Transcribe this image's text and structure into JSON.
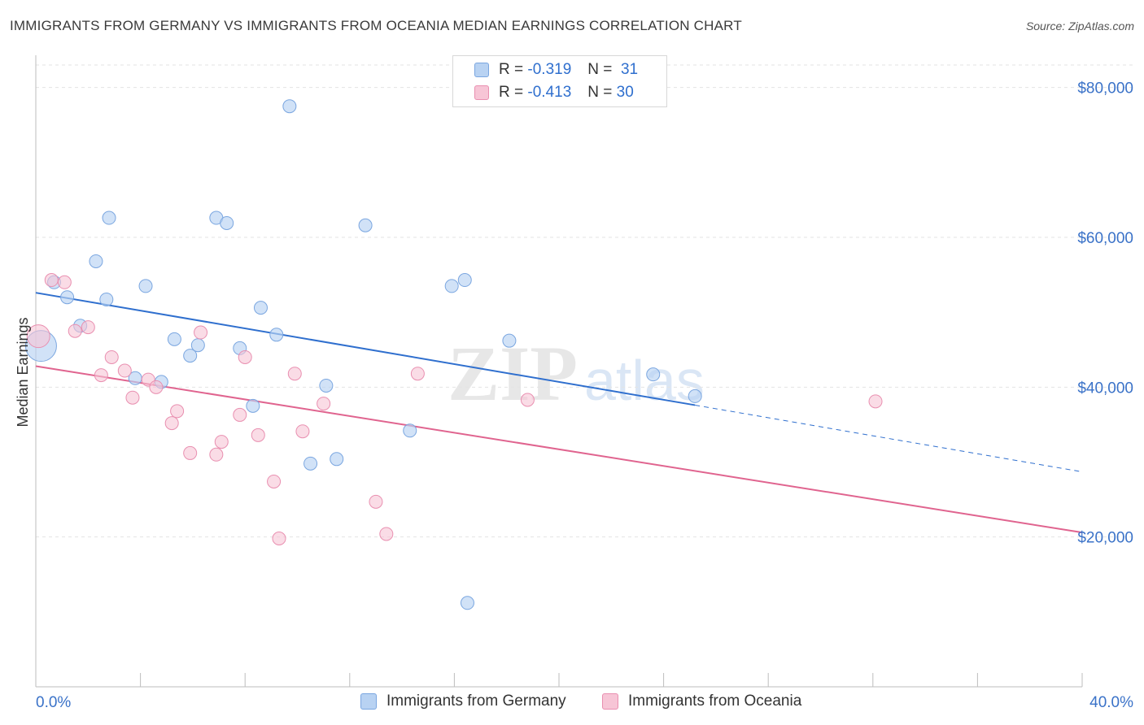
{
  "title": "IMMIGRANTS FROM GERMANY VS IMMIGRANTS FROM OCEANIA MEDIAN EARNINGS CORRELATION CHART",
  "source": "Source: ZipAtlas.com",
  "legend": {
    "r_label": "R =",
    "n_label": "N =",
    "rows": [
      {
        "r": "-0.319",
        "n": "31"
      },
      {
        "r": "-0.413",
        "n": "30"
      }
    ]
  },
  "colors": {
    "germany_fill": "#b8d2f2",
    "germany_stroke": "#7aa6e0",
    "germany_line": "#2f6fce",
    "oceania_fill": "#f7c5d6",
    "oceania_stroke": "#e98fb0",
    "oceania_line": "#e0648f",
    "tick_label": "#3a72c8",
    "grid": "#e3e3e3"
  },
  "chart_data": {
    "type": "scatter",
    "xlabel": "",
    "ylabel": "Median Earnings",
    "xlim": [
      0,
      40
    ],
    "ylim": [
      0,
      83000
    ],
    "x_tick_labels": [
      "0.0%",
      "40.0%"
    ],
    "y_ticks": [
      20000,
      40000,
      60000,
      80000
    ],
    "y_tick_labels": [
      "$20,000",
      "$40,000",
      "$60,000",
      "$80,000"
    ],
    "grid": true,
    "watermark": "ZIPatlas",
    "series": [
      {
        "name": "Immigrants from Germany",
        "points": [
          [
            0.2,
            45500
          ],
          [
            0.7,
            54000
          ],
          [
            1.2,
            52000
          ],
          [
            1.7,
            48200
          ],
          [
            2.3,
            56800
          ],
          [
            2.8,
            62600
          ],
          [
            2.7,
            51700
          ],
          [
            3.8,
            41200
          ],
          [
            4.2,
            53500
          ],
          [
            4.8,
            40700
          ],
          [
            5.3,
            46400
          ],
          [
            5.9,
            44200
          ],
          [
            6.2,
            45600
          ],
          [
            6.9,
            62600
          ],
          [
            7.3,
            61900
          ],
          [
            7.8,
            45200
          ],
          [
            8.3,
            37500
          ],
          [
            8.6,
            50600
          ],
          [
            9.2,
            47000
          ],
          [
            9.7,
            77500
          ],
          [
            10.5,
            29800
          ],
          [
            11.1,
            40200
          ],
          [
            11.5,
            30400
          ],
          [
            12.6,
            61600
          ],
          [
            14.3,
            34200
          ],
          [
            15.9,
            53500
          ],
          [
            16.4,
            54300
          ],
          [
            16.5,
            11200
          ],
          [
            18.1,
            46200
          ],
          [
            23.6,
            41700
          ],
          [
            25.2,
            38800
          ]
        ],
        "trend": {
          "x": [
            0,
            25.2
          ],
          "y": [
            52600,
            37600
          ]
        },
        "trend_extension": {
          "x": [
            25.2,
            40
          ],
          "y": [
            37600,
            28700
          ]
        }
      },
      {
        "name": "Immigrants from Oceania",
        "points": [
          [
            0.1,
            46800
          ],
          [
            0.6,
            54300
          ],
          [
            1.1,
            54000
          ],
          [
            1.5,
            47500
          ],
          [
            2.0,
            48000
          ],
          [
            2.5,
            41600
          ],
          [
            2.9,
            44000
          ],
          [
            3.4,
            42200
          ],
          [
            3.7,
            38600
          ],
          [
            4.3,
            41000
          ],
          [
            4.6,
            40000
          ],
          [
            5.2,
            35200
          ],
          [
            5.4,
            36800
          ],
          [
            5.9,
            31200
          ],
          [
            6.3,
            47300
          ],
          [
            6.9,
            31000
          ],
          [
            7.1,
            32700
          ],
          [
            7.8,
            36300
          ],
          [
            8.0,
            44000
          ],
          [
            8.5,
            33600
          ],
          [
            9.1,
            27400
          ],
          [
            9.3,
            19800
          ],
          [
            9.9,
            41800
          ],
          [
            10.2,
            34100
          ],
          [
            11.0,
            37800
          ],
          [
            13.0,
            24700
          ],
          [
            13.4,
            20400
          ],
          [
            14.6,
            41800
          ],
          [
            18.8,
            38300
          ],
          [
            32.1,
            38100
          ]
        ],
        "trend": {
          "x": [
            0,
            40
          ],
          "y": [
            42800,
            20600
          ]
        }
      }
    ]
  }
}
